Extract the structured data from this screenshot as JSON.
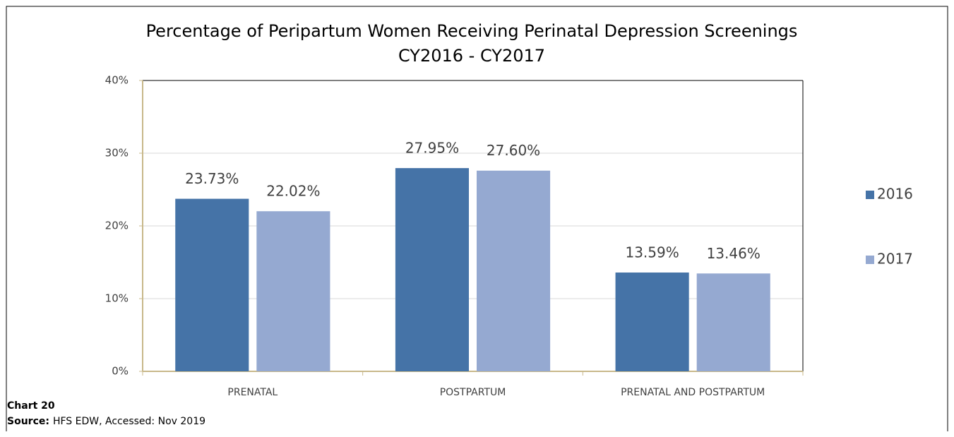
{
  "chart_data": {
    "type": "bar",
    "title": "Percentage of Peripartum Women Receiving Perinatal Depression Screenings",
    "subtitle": "CY2016 - CY2017",
    "categories": [
      "PRENATAL",
      "POSTPARTUM",
      "PRENATAL AND POSTPARTUM"
    ],
    "series": [
      {
        "name": "2016",
        "color": "#4573a7",
        "values": [
          23.73,
          27.95,
          13.59
        ],
        "value_labels": [
          "23.73%",
          "27.95%",
          "13.59%"
        ]
      },
      {
        "name": "2017",
        "color": "#95a9d1",
        "values": [
          22.02,
          27.6,
          13.46
        ],
        "value_labels": [
          "22.02%",
          "27.60%",
          "13.46%"
        ]
      }
    ],
    "ylim": [
      0,
      40
    ],
    "yticks": [
      {
        "value": 0,
        "label": "0%"
      },
      {
        "value": 10,
        "label": "10%"
      },
      {
        "value": 20,
        "label": "20%"
      },
      {
        "value": 30,
        "label": "30%"
      },
      {
        "value": 40,
        "label": "40%"
      }
    ],
    "grid": true,
    "legend": "right"
  },
  "footer": {
    "chart_label": "Chart 20",
    "source_label": "Source:",
    "source": "HFS EDW, Accessed: Nov 2019"
  }
}
